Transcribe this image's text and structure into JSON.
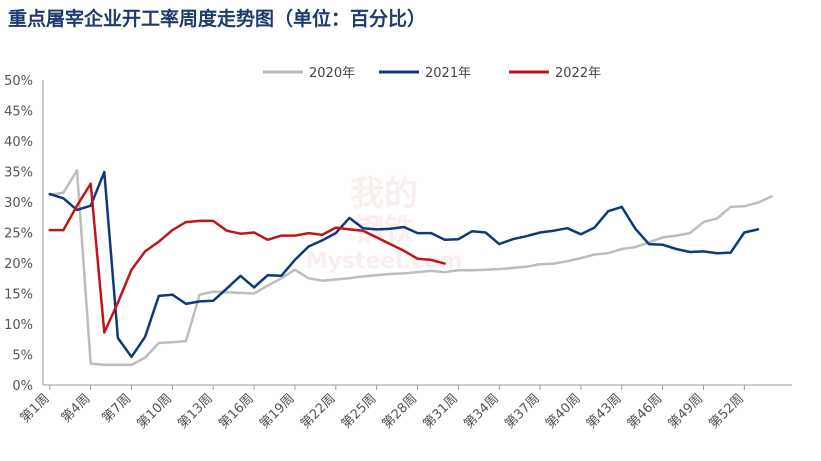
{
  "chart_data": {
    "type": "line",
    "title": "重点屠宰企业开工率周度走势图（单位：百分比）",
    "xlabel": "",
    "ylabel": "",
    "ylim": [
      0,
      50
    ],
    "yticks": [
      "0%",
      "5%",
      "10%",
      "15%",
      "20%",
      "25%",
      "30%",
      "35%",
      "40%",
      "45%",
      "50%"
    ],
    "x_count": 55,
    "x_tick_weeks": [
      1,
      4,
      7,
      10,
      13,
      16,
      19,
      22,
      25,
      28,
      31,
      34,
      37,
      40,
      43,
      46,
      49,
      52
    ],
    "x_tick_labels": [
      "第1周",
      "第4周",
      "第7周",
      "第10周",
      "第13周",
      "第16周",
      "第19周",
      "第22周",
      "第25周",
      "第28周",
      "第31周",
      "第34周",
      "第37周",
      "第40周",
      "第43周",
      "第46周",
      "第49周",
      "第52周"
    ],
    "legend_position": "top",
    "grid": false,
    "series": [
      {
        "name": "2020年",
        "color": "#bdbdbd",
        "values": [
          31.2,
          31.5,
          35.2,
          3.5,
          3.3,
          3.3,
          3.3,
          4.5,
          6.9,
          7.0,
          7.2,
          14.8,
          15.3,
          15.2,
          15.1,
          15.0,
          16.3,
          17.5,
          18.9,
          17.5,
          17.1,
          17.3,
          17.5,
          17.8,
          18.0,
          18.2,
          18.3,
          18.5,
          18.7,
          18.5,
          18.8,
          18.8,
          18.9,
          19.0,
          19.2,
          19.4,
          19.8,
          19.9,
          20.3,
          20.8,
          21.4,
          21.6,
          22.3,
          22.6,
          23.4,
          24.2,
          24.5,
          24.9,
          26.7,
          27.3,
          29.2,
          29.3,
          29.9,
          30.9
        ]
      },
      {
        "name": "2021年",
        "color": "#0e3a7a",
        "values": [
          31.3,
          30.6,
          28.7,
          29.4,
          34.9,
          7.7,
          4.6,
          7.9,
          14.6,
          14.8,
          13.3,
          13.7,
          13.8,
          15.8,
          17.9,
          16.0,
          18.0,
          17.9,
          20.5,
          22.7,
          23.7,
          24.9,
          27.4,
          25.7,
          25.5,
          25.6,
          25.9,
          24.9,
          24.9,
          23.8,
          23.9,
          25.2,
          25.0,
          23.1,
          23.9,
          24.4,
          25.0,
          25.3,
          25.7,
          24.7,
          25.8,
          28.5,
          29.2,
          25.6,
          23.1,
          23.0,
          22.3,
          21.8,
          21.9,
          21.6,
          21.7,
          25.0,
          25.5
        ]
      },
      {
        "name": "2022年",
        "color": "#c0161a",
        "values": [
          25.4,
          25.4,
          29.4,
          33.0,
          8.6,
          13.5,
          18.9,
          21.9,
          23.5,
          25.4,
          26.7,
          26.9,
          26.9,
          25.3,
          24.8,
          25.0,
          23.8,
          24.5,
          24.5,
          24.9,
          24.6,
          25.8,
          25.5,
          25.3,
          24.2,
          23.1,
          22.0,
          20.7,
          20.5,
          19.9
        ]
      }
    ]
  },
  "watermark": {
    "line1": "我的",
    "line2": "钢铁",
    "line3": "Mysteel.com"
  }
}
